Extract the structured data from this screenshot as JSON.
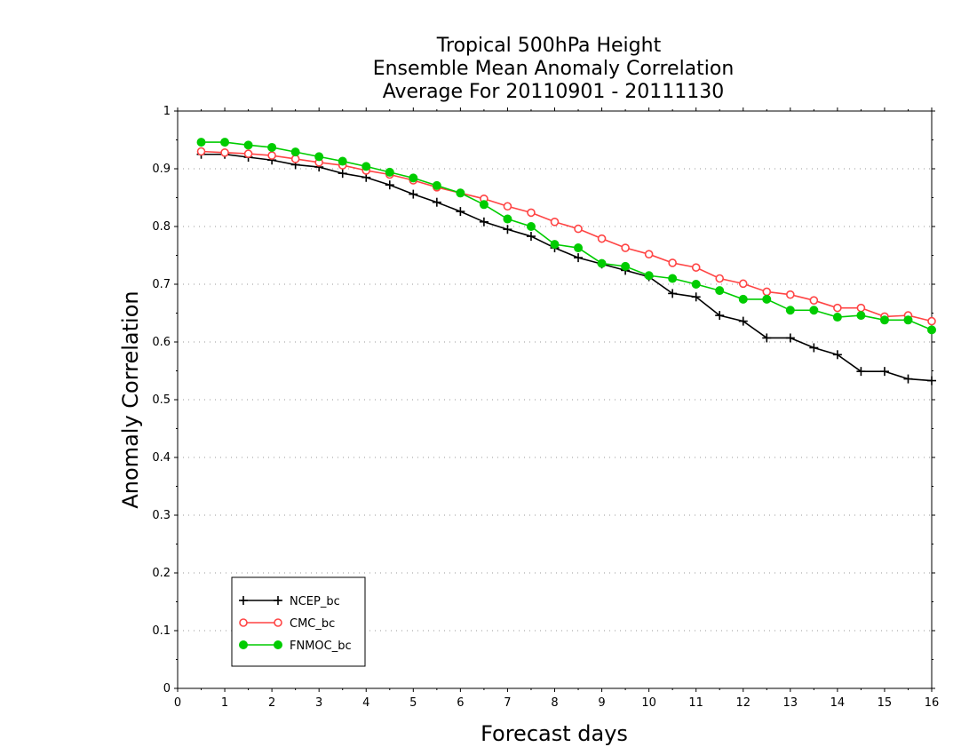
{
  "chart_data": {
    "type": "line",
    "title_lines": [
      "Tropical 500hPa Height",
      "Ensemble Mean Anomaly Correlation",
      "Average For 20110901 - 20111130"
    ],
    "xlabel": "Forecast days",
    "ylabel": "Anomaly Correlation",
    "xlim": [
      0,
      16
    ],
    "ylim": [
      0,
      1
    ],
    "xticks": [
      "0",
      "1",
      "2",
      "3",
      "4",
      "5",
      "6",
      "7",
      "8",
      "9",
      "10",
      "11",
      "12",
      "13",
      "14",
      "15",
      "16"
    ],
    "yticks": [
      "0",
      "0.1",
      "0.2",
      "0.3",
      "0.4",
      "0.5",
      "0.6",
      "0.7",
      "0.8",
      "0.9",
      "1"
    ],
    "grid": "dotted horizontal",
    "legend_position": "bottom-left",
    "x": [
      0.5,
      1,
      1.5,
      2,
      2.5,
      3,
      3.5,
      4,
      4.5,
      5,
      5.5,
      6,
      6.5,
      7,
      7.5,
      8,
      8.5,
      9,
      9.5,
      10,
      10.5,
      11,
      11.5,
      12,
      12.5,
      13,
      13.5,
      14,
      14.5,
      15,
      15.5,
      16
    ],
    "series": [
      {
        "name": "NCEP_bc",
        "color": "#000000",
        "marker": "plus",
        "values": [
          0.925,
          0.925,
          0.92,
          0.915,
          0.907,
          0.903,
          0.892,
          0.885,
          0.872,
          0.856,
          0.842,
          0.826,
          0.808,
          0.795,
          0.783,
          0.763,
          0.746,
          0.735,
          0.724,
          0.713,
          0.684,
          0.678,
          0.646,
          0.636,
          0.607,
          0.607,
          0.59,
          0.578,
          0.549,
          0.549,
          0.536,
          0.533
        ]
      },
      {
        "name": "CMC_bc",
        "color": "#ff4444",
        "marker": "open-circle",
        "values": [
          0.93,
          0.928,
          0.926,
          0.923,
          0.917,
          0.911,
          0.906,
          0.897,
          0.89,
          0.88,
          0.868,
          0.858,
          0.848,
          0.835,
          0.824,
          0.808,
          0.796,
          0.779,
          0.763,
          0.752,
          0.737,
          0.729,
          0.71,
          0.701,
          0.687,
          0.682,
          0.672,
          0.659,
          0.659,
          0.644,
          0.646,
          0.636
        ]
      },
      {
        "name": "FNMOC_bc",
        "color": "#00cc00",
        "marker": "filled-circle",
        "values": [
          0.946,
          0.946,
          0.941,
          0.937,
          0.929,
          0.921,
          0.913,
          0.904,
          0.894,
          0.884,
          0.871,
          0.858,
          0.838,
          0.813,
          0.8,
          0.769,
          0.763,
          0.736,
          0.731,
          0.715,
          0.71,
          0.7,
          0.689,
          0.674,
          0.674,
          0.655,
          0.655,
          0.643,
          0.646,
          0.638,
          0.638,
          0.621
        ]
      }
    ]
  }
}
